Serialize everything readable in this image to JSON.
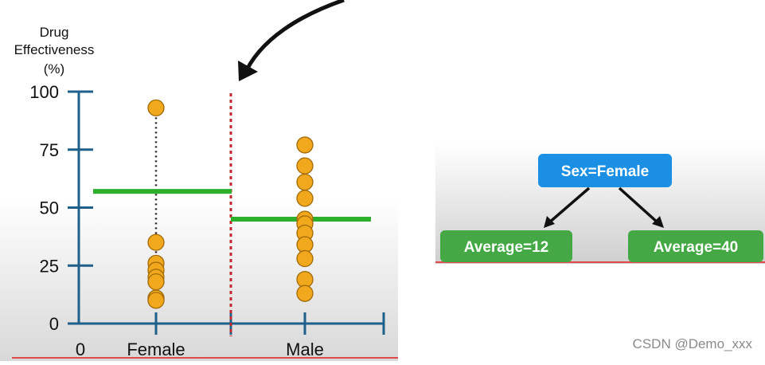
{
  "chart_data": {
    "type": "scatter",
    "title": "",
    "ylabel_lines": [
      "Drug",
      "Effectiveness",
      "(%)"
    ],
    "xlabel": "",
    "origin_label": "0",
    "categories": [
      "Female",
      "Male"
    ],
    "ylim": [
      0,
      100
    ],
    "yticks": [
      0,
      25,
      50,
      75,
      100
    ],
    "series": [
      {
        "category": "Female",
        "values": [
          93,
          35,
          26,
          23,
          20,
          18,
          11,
          10
        ]
      },
      {
        "category": "Male",
        "values": [
          77,
          68,
          61,
          54,
          45,
          43,
          39,
          34,
          28,
          19,
          13
        ]
      }
    ],
    "thresholds": [
      {
        "category": "Female",
        "value": 57
      },
      {
        "category": "Male",
        "value": 45
      }
    ],
    "colors": {
      "axis": "#1f5f8b",
      "point_fill": "#f2a81d",
      "point_stroke": "#a06a08",
      "threshold": "#2cb02c",
      "split": "#c0282c",
      "arrow": "#111111"
    }
  },
  "tree": {
    "root": {
      "label": "Sex=Female",
      "color": "#1a8fe3"
    },
    "leaves": [
      {
        "label": "Average=12",
        "color": "#44a845"
      },
      {
        "label": "Average=40",
        "color": "#44a845"
      }
    ]
  },
  "watermark": "CSDN @Demo_xxx"
}
